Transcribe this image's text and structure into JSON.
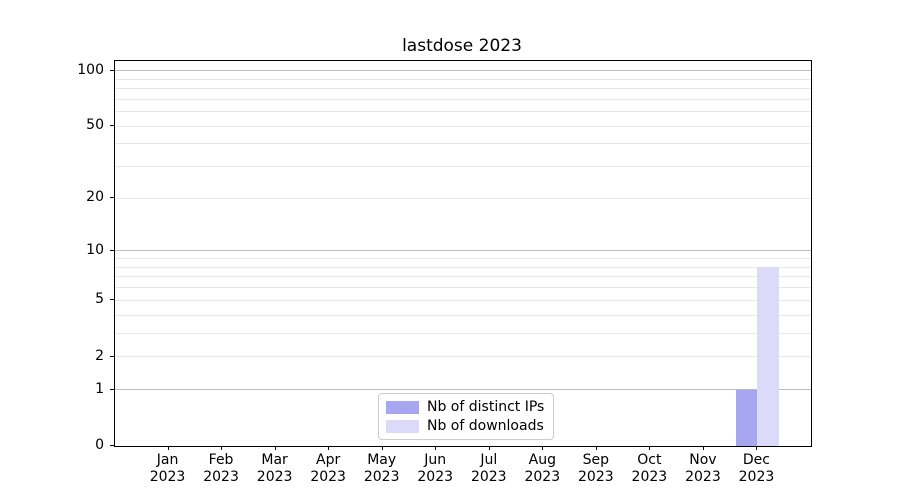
{
  "chart_data": {
    "type": "bar",
    "title": "lastdose 2023",
    "categories": [
      "Jan\n2023",
      "Feb\n2023",
      "Mar\n2023",
      "Apr\n2023",
      "May\n2023",
      "Jun\n2023",
      "Jul\n2023",
      "Aug\n2023",
      "Sep\n2023",
      "Oct\n2023",
      "Nov\n2023",
      "Dec\n2023"
    ],
    "series": [
      {
        "name": "Nb of distinct IPs",
        "color": "#a7a7f1",
        "values": [
          0,
          0,
          0,
          0,
          0,
          0,
          0,
          0,
          0,
          0,
          0,
          1
        ]
      },
      {
        "name": "Nb of downloads",
        "color": "#dbdbf9",
        "values": [
          0,
          0,
          0,
          0,
          0,
          0,
          0,
          0,
          0,
          0,
          0,
          8
        ]
      }
    ],
    "yscale": "log1p",
    "ylim": [
      0,
      112.7
    ],
    "xlim": [
      -1,
      12
    ],
    "yticks": [
      0,
      1,
      2,
      5,
      10,
      20,
      50,
      100
    ],
    "y_major_gridlines": [
      1,
      10,
      100
    ],
    "y_minor_gridlines": [
      2,
      3,
      4,
      5,
      6,
      7,
      8,
      9,
      20,
      30,
      40,
      50,
      60,
      70,
      80,
      90
    ],
    "bar_width": 0.4,
    "legend_position": "lower center",
    "grid": true,
    "colors": {
      "grid_major": "#bdbdbd",
      "grid_minor": "#e8e8e8",
      "axis": "#000000",
      "legend_border": "#cccccc",
      "background": "#ffffff"
    }
  }
}
